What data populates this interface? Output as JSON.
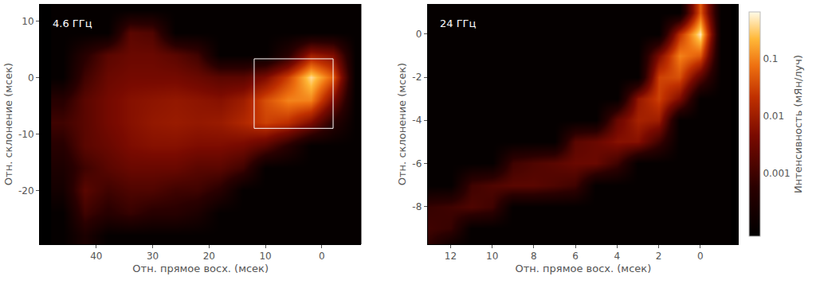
{
  "chart_data": [
    {
      "type": "heatmap",
      "label": "4.6 ГГц",
      "x_label": "Отн. прямое восх. (мсек)",
      "y_label": "Отн. склонение (мсек)",
      "x": [
        46,
        42,
        38,
        34,
        30,
        26,
        22,
        18,
        14,
        10,
        6,
        2,
        -2,
        -6
      ],
      "y": [
        -28,
        -24,
        -20,
        -16,
        -12,
        -8,
        -4,
        0,
        4,
        8,
        12
      ],
      "z": [
        [
          0.0001,
          0.0003,
          0.0001,
          0.0001,
          0.0001,
          0.0001,
          0.0001,
          0.0001,
          0.0001,
          0.0001,
          0.0001,
          0.0001,
          0.0001,
          0.0001
        ],
        [
          0.0001,
          0.001,
          0.0005,
          0.0008,
          0.0005,
          0.0005,
          0.0003,
          0.0001,
          0.0001,
          0.0001,
          0.0001,
          0.0001,
          0.0001,
          0.0001
        ],
        [
          0.0002,
          0.002,
          0.001,
          0.0015,
          0.0015,
          0.001,
          0.001,
          0.0005,
          0.0001,
          0.0001,
          0.0001,
          0.0001,
          0.0001,
          0.0001
        ],
        [
          0.0003,
          0.001,
          0.002,
          0.003,
          0.003,
          0.003,
          0.002,
          0.002,
          0.001,
          0.0001,
          0.0001,
          0.0001,
          0.0001,
          0.0001
        ],
        [
          0.0005,
          0.002,
          0.003,
          0.005,
          0.006,
          0.006,
          0.005,
          0.005,
          0.004,
          0.002,
          0.0005,
          0.0001,
          0.0001,
          0.0001
        ],
        [
          0.001,
          0.002,
          0.004,
          0.006,
          0.008,
          0.009,
          0.008,
          0.009,
          0.015,
          0.03,
          0.02,
          0.005,
          0.0005,
          0.0001
        ],
        [
          0.0005,
          0.002,
          0.004,
          0.006,
          0.007,
          0.008,
          0.007,
          0.006,
          0.01,
          0.04,
          0.1,
          0.1,
          0.005,
          0.0001
        ],
        [
          0.0001,
          0.001,
          0.003,
          0.004,
          0.004,
          0.004,
          0.003,
          0.002,
          0.002,
          0.005,
          0.03,
          0.4,
          0.05,
          0.0001
        ],
        [
          0.0001,
          0.0005,
          0.002,
          0.003,
          0.003,
          0.002,
          0.001,
          0.0001,
          0.0001,
          0.0001,
          0.0005,
          0.01,
          0.005,
          0.0001
        ],
        [
          0.0001,
          0.0001,
          0.0001,
          0.002,
          0.0015,
          0.0001,
          0.0001,
          0.0001,
          0.0001,
          0.0001,
          0.0001,
          0.0001,
          0.0001,
          0.0001
        ],
        [
          0.0001,
          0.0001,
          0.0001,
          0.0001,
          0.0001,
          0.0001,
          0.0001,
          0.0001,
          0.0001,
          0.0001,
          0.0001,
          0.0001,
          0.0001,
          0.0001
        ]
      ],
      "xlim": [
        50,
        -7
      ],
      "ylim": [
        -29.5,
        13
      ],
      "xticks": [
        40,
        30,
        20,
        10,
        0
      ],
      "yticks": [
        10,
        0,
        -10,
        -20
      ],
      "box": {
        "x": [
          12,
          -2
        ],
        "y": [
          -9,
          3.3
        ]
      }
    },
    {
      "type": "heatmap",
      "label": "24 ГГц",
      "x_label": "Отн. прямое восх. (мсек)",
      "y_label": "Отн. склонение (мсек)",
      "x": [
        13,
        12,
        11,
        10,
        9,
        8,
        7,
        6,
        5,
        4,
        3,
        2,
        1,
        0,
        -1
      ],
      "y": [
        -10,
        -9,
        -8,
        -7,
        -6,
        -5,
        -4,
        -3,
        -2,
        -1,
        0,
        1
      ],
      "z": [
        [
          0.0005,
          0.0001,
          0.0001,
          0.0001,
          0.0001,
          0.0001,
          0.0001,
          0.0001,
          0.0001,
          0.0001,
          0.0001,
          0.0001,
          0.0001,
          0.0001,
          0.0001
        ],
        [
          0.001,
          0.0008,
          0.0001,
          0.0001,
          0.0001,
          0.0001,
          0.0001,
          0.0001,
          0.0001,
          0.0001,
          0.0001,
          0.0001,
          0.0001,
          0.0001,
          0.0001
        ],
        [
          0.0008,
          0.001,
          0.0015,
          0.001,
          0.0001,
          0.0001,
          0.0001,
          0.0001,
          0.0001,
          0.0001,
          0.0001,
          0.0001,
          0.0001,
          0.0001,
          0.0001
        ],
        [
          0.0001,
          0.0001,
          0.001,
          0.0015,
          0.002,
          0.002,
          0.0015,
          0.001,
          0.0001,
          0.0001,
          0.0001,
          0.0001,
          0.0001,
          0.0001,
          0.0001
        ],
        [
          0.0001,
          0.0001,
          0.0001,
          0.0001,
          0.001,
          0.0015,
          0.002,
          0.003,
          0.003,
          0.001,
          0.0001,
          0.0001,
          0.0001,
          0.0001,
          0.0001
        ],
        [
          0.0001,
          0.0001,
          0.0001,
          0.0001,
          0.0001,
          0.0001,
          0.0001,
          0.002,
          0.003,
          0.006,
          0.006,
          0.001,
          0.0001,
          0.0001,
          0.0001
        ],
        [
          0.0001,
          0.0001,
          0.0001,
          0.0001,
          0.0001,
          0.0001,
          0.0001,
          0.0001,
          0.0001,
          0.003,
          0.012,
          0.01,
          0.0001,
          0.0001,
          0.0001
        ],
        [
          0.0001,
          0.0001,
          0.0001,
          0.0001,
          0.0001,
          0.0001,
          0.0001,
          0.0001,
          0.0001,
          0.0001,
          0.008,
          0.03,
          0.005,
          0.0001,
          0.0001
        ],
        [
          0.0001,
          0.0001,
          0.0001,
          0.0001,
          0.0001,
          0.0001,
          0.0001,
          0.0001,
          0.0001,
          0.0001,
          0.0001,
          0.03,
          0.04,
          0.002,
          0.0001
        ],
        [
          0.0001,
          0.0001,
          0.0001,
          0.0001,
          0.0001,
          0.0001,
          0.0001,
          0.0001,
          0.0001,
          0.0001,
          0.0001,
          0.005,
          0.1,
          0.05,
          0.0001
        ],
        [
          0.0001,
          0.0001,
          0.0001,
          0.0001,
          0.0001,
          0.0001,
          0.0001,
          0.0001,
          0.0001,
          0.0001,
          0.0001,
          0.0001,
          0.02,
          0.5,
          0.0001
        ],
        [
          0.0001,
          0.0001,
          0.0001,
          0.0001,
          0.0001,
          0.0001,
          0.0001,
          0.0001,
          0.0001,
          0.0001,
          0.0001,
          0.0001,
          0.0001,
          0.05,
          0.0001
        ]
      ],
      "xlim": [
        13.1,
        -1.85
      ],
      "ylim": [
        -9.75,
        1.4
      ],
      "xticks": [
        12,
        10,
        8,
        6,
        4,
        2,
        0
      ],
      "yticks": [
        0,
        -2,
        -4,
        -6,
        -8
      ],
      "colorbar": {
        "title": "Интенсивность (мЯн/луч)",
        "range": [
          8e-05,
          0.65
        ],
        "ticks": [
          0.001,
          0.01,
          0.1
        ],
        "log": true
      }
    }
  ]
}
